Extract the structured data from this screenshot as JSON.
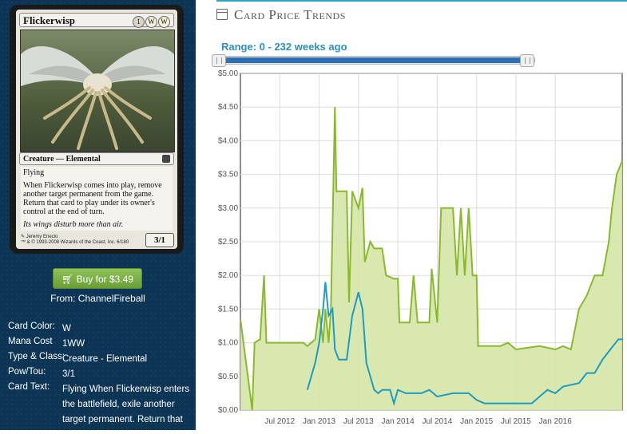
{
  "card": {
    "name": "Flickerwisp",
    "mana_symbols": [
      "1",
      "W",
      "W"
    ],
    "type_line": "Creature — Elemental",
    "rules_text": [
      "Flying",
      "When Flickerwisp comes into play, remove another target permanent from the game. Return that card to play under its owner's control at the end of turn."
    ],
    "flavor_text": "Its wings disturb more than air.",
    "artist": "Jeremy Enecio",
    "copyright": "™ & © 1993-2008 Wizards of the Coast, Inc. 6/180",
    "power_toughness": "3/1"
  },
  "buy_button": {
    "label": "Buy for $3.49"
  },
  "source": "From: ChannelFireball",
  "details": [
    {
      "key": "Card Color:",
      "value": "W"
    },
    {
      "key": "Mana Cost",
      "value": "1WW"
    },
    {
      "key": "Type & Class:",
      "value": "Creature - Elemental"
    },
    {
      "key": "Pow/Tou:",
      "value": "3/1"
    },
    {
      "key": "Card Text:",
      "value": "Flying When Flickerwisp enters the battlefield, exile another target permanent. Return that"
    }
  ],
  "section_title": "Card Price Trends",
  "range": {
    "label": "Range: 0 - 232 weeks ago",
    "min": 0,
    "max": 232
  },
  "colors": {
    "accent": "#2fa5c9",
    "retail_line": "#8ab82e",
    "retail_fill": "#d4e6a6",
    "buylist_line": "#1e9cc0",
    "panel_bg": "#0c3455",
    "buy_button": "#7cb342"
  },
  "chart_data": {
    "type": "area",
    "y_ticks": [
      "$0.00",
      "$0.50",
      "$1.00",
      "$1.50",
      "$2.00",
      "$2.50",
      "$3.00",
      "$3.50",
      "$4.00",
      "$4.50",
      "$5.00"
    ],
    "x_ticks": [
      "Jul 2012",
      "Jan 2013",
      "Jul 2013",
      "Jan 2014",
      "Jul 2014",
      "Jan 2015",
      "Jul 2015",
      "Jan 2016"
    ],
    "x_range": [
      2012.0,
      2016.85
    ],
    "ylim": [
      0,
      5
    ],
    "grid": true,
    "series": [
      {
        "values": [
          [
            2012.0,
            1.35
          ],
          [
            2012.15,
            0
          ],
          [
            2012.18,
            1.0
          ],
          [
            2012.25,
            1.05
          ],
          [
            2012.3,
            2.0
          ],
          [
            2012.33,
            1.0
          ],
          [
            2012.5,
            1.0
          ],
          [
            2012.8,
            1.0
          ],
          [
            2012.85,
            0.95
          ],
          [
            2012.95,
            1.05
          ],
          [
            2013.0,
            1.5
          ],
          [
            2013.05,
            1.0
          ],
          [
            2013.08,
            1.5
          ],
          [
            2013.12,
            1.0
          ],
          [
            2013.15,
            1.5
          ],
          [
            2013.2,
            4.5
          ],
          [
            2013.22,
            3.25
          ],
          [
            2013.35,
            3.25
          ],
          [
            2013.38,
            1.6
          ],
          [
            2013.42,
            3.25
          ],
          [
            2013.5,
            3.0
          ],
          [
            2013.55,
            3.3
          ],
          [
            2013.58,
            2.2
          ],
          [
            2013.65,
            2.5
          ],
          [
            2013.7,
            2.4
          ],
          [
            2013.8,
            2.4
          ],
          [
            2013.85,
            2.0
          ],
          [
            2013.95,
            1.95
          ],
          [
            2014.0,
            1.95
          ],
          [
            2014.02,
            1.3
          ],
          [
            2014.15,
            1.3
          ],
          [
            2014.2,
            2.0
          ],
          [
            2014.25,
            1.3
          ],
          [
            2014.4,
            1.3
          ],
          [
            2014.43,
            2.1
          ],
          [
            2014.5,
            1.3
          ],
          [
            2014.55,
            3.0
          ],
          [
            2014.7,
            3.0
          ],
          [
            2014.75,
            2.0
          ],
          [
            2014.8,
            3.0
          ],
          [
            2014.85,
            2.0
          ],
          [
            2014.9,
            3.0
          ],
          [
            2014.95,
            2.0
          ],
          [
            2015.0,
            2.0
          ],
          [
            2015.02,
            0.95
          ],
          [
            2015.3,
            0.95
          ],
          [
            2015.4,
            1.0
          ],
          [
            2015.5,
            0.9
          ],
          [
            2015.8,
            0.95
          ],
          [
            2016.0,
            0.9
          ],
          [
            2016.1,
            0.95
          ],
          [
            2016.2,
            0.9
          ],
          [
            2016.3,
            1.5
          ],
          [
            2016.4,
            1.7
          ],
          [
            2016.5,
            2.0
          ],
          [
            2016.6,
            2.0
          ],
          [
            2016.68,
            2.5
          ],
          [
            2016.72,
            3.0
          ],
          [
            2016.78,
            3.5
          ],
          [
            2016.85,
            3.7
          ]
        ]
      },
      {
        "values": [
          [
            2012.85,
            0.3
          ],
          [
            2012.9,
            0.5
          ],
          [
            2012.95,
            0.7
          ],
          [
            2013.0,
            1.0
          ],
          [
            2013.05,
            1.5
          ],
          [
            2013.08,
            1.9
          ],
          [
            2013.12,
            1.4
          ],
          [
            2013.17,
            1.5
          ],
          [
            2013.2,
            0.9
          ],
          [
            2013.25,
            0.75
          ],
          [
            2013.35,
            0.75
          ],
          [
            2013.42,
            1.4
          ],
          [
            2013.5,
            1.75
          ],
          [
            2013.55,
            1.5
          ],
          [
            2013.6,
            0.7
          ],
          [
            2013.7,
            0.3
          ],
          [
            2013.75,
            0.25
          ],
          [
            2013.8,
            0.3
          ],
          [
            2013.9,
            0.3
          ],
          [
            2013.95,
            0.1
          ],
          [
            2014.0,
            0.3
          ],
          [
            2014.1,
            0.25
          ],
          [
            2014.3,
            0.25
          ],
          [
            2014.4,
            0.3
          ],
          [
            2014.5,
            0.2
          ],
          [
            2014.7,
            0.25
          ],
          [
            2014.9,
            0.25
          ],
          [
            2015.0,
            0.15
          ],
          [
            2015.1,
            0.1
          ],
          [
            2015.5,
            0.1
          ],
          [
            2015.7,
            0.1
          ],
          [
            2015.8,
            0.2
          ],
          [
            2015.9,
            0.3
          ],
          [
            2016.0,
            0.25
          ],
          [
            2016.1,
            0.35
          ],
          [
            2016.3,
            0.4
          ],
          [
            2016.4,
            0.55
          ],
          [
            2016.5,
            0.55
          ],
          [
            2016.6,
            0.75
          ],
          [
            2016.7,
            0.9
          ],
          [
            2016.8,
            1.05
          ],
          [
            2016.85,
            1.05
          ]
        ]
      }
    ]
  }
}
